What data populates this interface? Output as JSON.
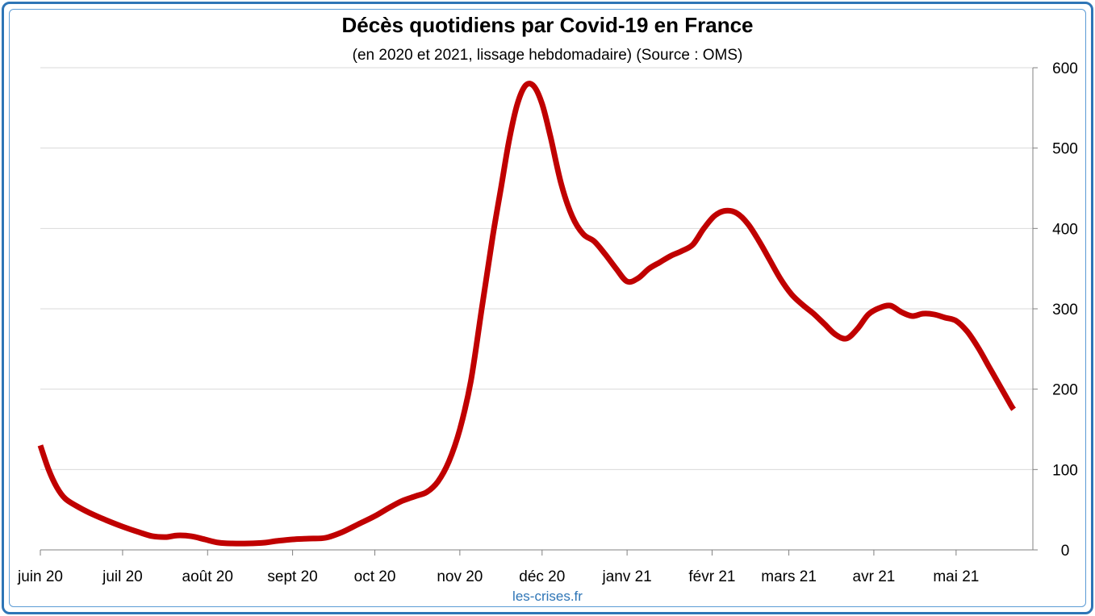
{
  "chart_data": {
    "type": "line",
    "title": "Décès quotidiens par Covid-19 en France",
    "subtitle": "(en 2020 et 2021, lissage hebdomadaire) (Source : OMS)",
    "source_label": "les-crises.fr",
    "xlabel": "",
    "ylabel": "",
    "x_tick_labels": [
      "juin 20",
      "juil 20",
      "août 20",
      "sept 20",
      "oct 20",
      "nov 20",
      "déc 20",
      "janv 21",
      "févr 21",
      "mars 21",
      "avr 21",
      "mai 21"
    ],
    "x_tick_days": [
      0,
      30,
      61,
      92,
      122,
      153,
      183,
      214,
      245,
      273,
      304,
      334
    ],
    "xlim_days": [
      0,
      362
    ],
    "y_ticks": [
      0,
      100,
      200,
      300,
      400,
      500,
      600
    ],
    "ylim": [
      0,
      600
    ],
    "y_axis_side": "right",
    "grid": true,
    "series": [
      {
        "color": "#c00000",
        "points": [
          [
            0,
            130
          ],
          [
            3,
            100
          ],
          [
            6,
            78
          ],
          [
            9,
            64
          ],
          [
            13,
            55
          ],
          [
            18,
            46
          ],
          [
            24,
            37
          ],
          [
            30,
            29
          ],
          [
            36,
            22
          ],
          [
            41,
            17
          ],
          [
            46,
            16
          ],
          [
            50,
            18
          ],
          [
            55,
            17
          ],
          [
            60,
            13
          ],
          [
            65,
            9
          ],
          [
            70,
            8
          ],
          [
            76,
            8
          ],
          [
            82,
            9
          ],
          [
            86,
            11
          ],
          [
            92,
            13
          ],
          [
            98,
            14
          ],
          [
            104,
            15
          ],
          [
            110,
            22
          ],
          [
            116,
            32
          ],
          [
            122,
            42
          ],
          [
            127,
            52
          ],
          [
            132,
            61
          ],
          [
            137,
            67
          ],
          [
            141,
            72
          ],
          [
            145,
            85
          ],
          [
            149,
            110
          ],
          [
            153,
            150
          ],
          [
            157,
            210
          ],
          [
            161,
            300
          ],
          [
            165,
            390
          ],
          [
            168,
            450
          ],
          [
            171,
            510
          ],
          [
            174,
            555
          ],
          [
            177,
            578
          ],
          [
            180,
            577
          ],
          [
            183,
            555
          ],
          [
            186,
            515
          ],
          [
            190,
            455
          ],
          [
            194,
            415
          ],
          [
            198,
            393
          ],
          [
            202,
            384
          ],
          [
            206,
            368
          ],
          [
            210,
            350
          ],
          [
            214,
            334
          ],
          [
            218,
            338
          ],
          [
            222,
            350
          ],
          [
            226,
            358
          ],
          [
            230,
            366
          ],
          [
            234,
            372
          ],
          [
            238,
            380
          ],
          [
            242,
            400
          ],
          [
            246,
            416
          ],
          [
            250,
            422
          ],
          [
            254,
            419
          ],
          [
            258,
            406
          ],
          [
            262,
            385
          ],
          [
            266,
            361
          ],
          [
            270,
            337
          ],
          [
            274,
            318
          ],
          [
            278,
            305
          ],
          [
            282,
            294
          ],
          [
            286,
            281
          ],
          [
            290,
            268
          ],
          [
            294,
            263
          ],
          [
            298,
            275
          ],
          [
            302,
            293
          ],
          [
            306,
            301
          ],
          [
            310,
            304
          ],
          [
            314,
            296
          ],
          [
            318,
            291
          ],
          [
            322,
            294
          ],
          [
            326,
            293
          ],
          [
            330,
            289
          ],
          [
            334,
            285
          ],
          [
            338,
            272
          ],
          [
            342,
            252
          ],
          [
            346,
            228
          ],
          [
            350,
            204
          ],
          [
            354,
            180
          ],
          [
            355,
            175
          ]
        ]
      }
    ]
  }
}
